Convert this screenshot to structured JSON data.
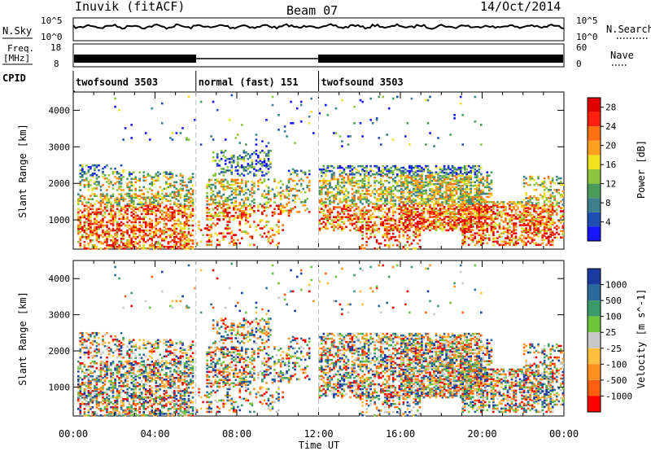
{
  "header": {
    "station": "Inuvik (fitACF)",
    "beam": "Beam 07",
    "date": "14/Oct/2014"
  },
  "top_panels": {
    "nsky_label": "N.Sky",
    "nsky_ticks": [
      "10^5",
      "10^0"
    ],
    "nsearch_label": "N.Search",
    "nsearch_ticks": [
      "10^5",
      "10^0"
    ],
    "freq_label_1": "Freq.",
    "freq_label_2": "[MHz]",
    "freq_ticks": [
      "18",
      "8"
    ],
    "nave_label": "Nave",
    "nave_ticks": [
      "60",
      "0"
    ],
    "cpid_label": "CPID",
    "cpid_segments": [
      {
        "label": "twofsound 3503",
        "start": 0,
        "end": 6
      },
      {
        "label": "normal (fast) 151",
        "start": 6,
        "end": 12
      },
      {
        "label": "twofsound 3503",
        "start": 12,
        "end": 24
      }
    ]
  },
  "chart_data": [
    {
      "type": "heatmap",
      "title": "Power",
      "ylabel": "Slant Range [km]",
      "xlabel": "",
      "xlim": [
        0,
        24
      ],
      "ylim": [
        200,
        4500
      ],
      "y_ticks": [
        1000,
        2000,
        3000,
        4000
      ],
      "colorbar": {
        "label": "Power [dB]",
        "ticks": [
          "4",
          "8",
          "12",
          "16",
          "20",
          "24",
          "28"
        ],
        "range": [
          0,
          30
        ]
      }
    },
    {
      "type": "heatmap",
      "title": "Velocity",
      "ylabel": "Slant Range [km]",
      "xlabel": "Time UT",
      "xlim": [
        0,
        24
      ],
      "ylim": [
        200,
        4500
      ],
      "x_tick_labels": [
        "00:00",
        "04:00",
        "08:00",
        "12:00",
        "16:00",
        "20:00",
        "00:00"
      ],
      "y_ticks": [
        1000,
        2000,
        3000,
        4000
      ],
      "colorbar": {
        "label": "Velocity [m s^-1]",
        "ticks": [
          "1000",
          "500",
          "100",
          "25",
          "-25",
          "-100",
          "-500",
          "-1000"
        ]
      }
    }
  ],
  "colors": {
    "power_scale": [
      "#1515ff",
      "#1f4fb0",
      "#3d7f8a",
      "#4a9a5a",
      "#8cc43c",
      "#f0e020",
      "#ffa020",
      "#ff7010",
      "#ff2010",
      "#e00000"
    ],
    "velocity_scale": [
      "#1a3aa0",
      "#2a6a9a",
      "#3a9a6a",
      "#6ec43a",
      "#c8c8c8",
      "#ffc040",
      "#ff9020",
      "#ff6010",
      "#ff0000"
    ]
  }
}
